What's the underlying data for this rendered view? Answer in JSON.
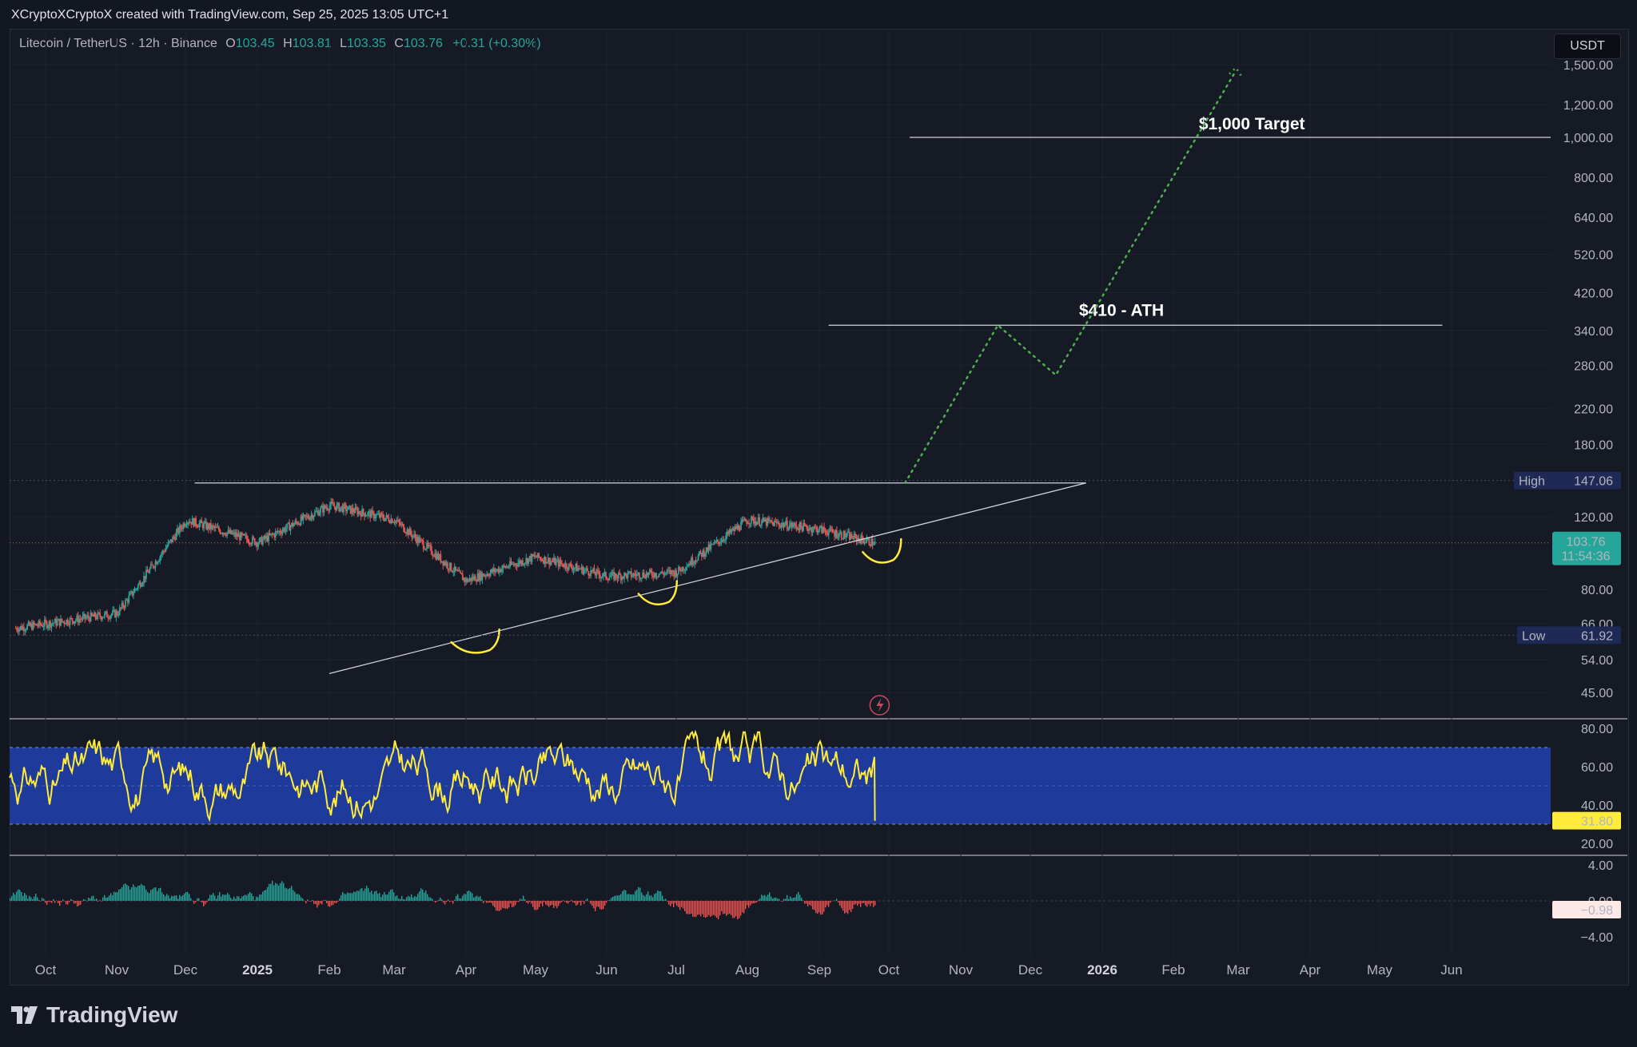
{
  "header": {
    "attribution": "XCryptoXCryptoX created with TradingView.com, Sep 25, 2025 13:05 UTC+1"
  },
  "legend": {
    "symbol": "Litecoin / TetherUS · 12h · Binance",
    "open_label": "O",
    "open": "103.45",
    "high_label": "H",
    "high": "103.81",
    "low_label": "L",
    "low": "103.35",
    "close_label": "C",
    "close": "103.76",
    "change": "+0.31 (+0.30%)"
  },
  "currency_button": "USDT",
  "footer": {
    "brand": "TradingView"
  },
  "colors": {
    "background": "#131722",
    "up": "#26a69a",
    "down": "#ef5350",
    "projection": "#4caf50",
    "rsi_band": "#1e3a9a",
    "rsi_line": "#ffeb3b",
    "annotation_marks": "#ffeb3b"
  },
  "chart_data": [
    {
      "type": "candlestick",
      "name": "LTCUSDT price",
      "scale": "log",
      "x_ticks": [
        "Oct",
        "Nov",
        "Dec",
        "2025",
        "Feb",
        "Mar",
        "Apr",
        "May",
        "Jun",
        "Jul",
        "Aug",
        "Sep",
        "Oct",
        "Nov",
        "Dec",
        "2026",
        "Feb",
        "Mar",
        "Apr",
        "May",
        "Jun"
      ],
      "y_ticks": [
        "1,500.00",
        "1,200.00",
        "1,000.00",
        "800.00",
        "640.00",
        "520.00",
        "420.00",
        "340.00",
        "280.00",
        "220.00",
        "180.00",
        "120.00",
        "80.00",
        "66.00",
        "54.00",
        "45.00"
      ],
      "ylim": [
        40,
        1600
      ],
      "monthly_closes": [
        {
          "x": "2024-10-01",
          "y": 66
        },
        {
          "x": "2024-11-01",
          "y": 70
        },
        {
          "x": "2024-12-01",
          "y": 118
        },
        {
          "x": "2025-01-01",
          "y": 104
        },
        {
          "x": "2025-02-01",
          "y": 128
        },
        {
          "x": "2025-03-01",
          "y": 118
        },
        {
          "x": "2025-04-01",
          "y": 84
        },
        {
          "x": "2025-05-01",
          "y": 96
        },
        {
          "x": "2025-06-01",
          "y": 86
        },
        {
          "x": "2025-07-01",
          "y": 88
        },
        {
          "x": "2025-08-01",
          "y": 118
        },
        {
          "x": "2025-09-01",
          "y": 112
        },
        {
          "x": "2025-09-25",
          "y": 103.76
        }
      ],
      "current_price": "103.76",
      "countdown": "11:54:36",
      "high": {
        "label": "High",
        "value": "147.06"
      },
      "low": {
        "label": "Low",
        "value": "61.92"
      },
      "annotations": [
        {
          "text": "$1,000 Target",
          "level": 1000
        },
        {
          "text": "$410 - ATH",
          "level": 350
        }
      ],
      "resistance_level": 145,
      "trendline": [
        {
          "x": "2025-02-01",
          "y": 50
        },
        {
          "x": "2025-12-25",
          "y": 145
        }
      ],
      "projection": [
        {
          "x": "2025-10-08",
          "y": 145
        },
        {
          "x": "2025-11-17",
          "y": 350
        },
        {
          "x": "2025-12-12",
          "y": 265
        },
        {
          "x": "2026-02-28",
          "y": 1450
        }
      ]
    },
    {
      "type": "line",
      "name": "RSI",
      "y_ticks": [
        "80.00",
        "60.00",
        "40.00",
        "20.00"
      ],
      "band": [
        30,
        70
      ],
      "current": "31.80",
      "ylim": [
        15,
        85
      ]
    },
    {
      "type": "histogram",
      "name": "MACD histogram",
      "y_ticks": [
        "4.00",
        "0.00",
        "−4.00"
      ],
      "current": "−0.98",
      "ylim": [
        -5,
        5
      ]
    }
  ]
}
